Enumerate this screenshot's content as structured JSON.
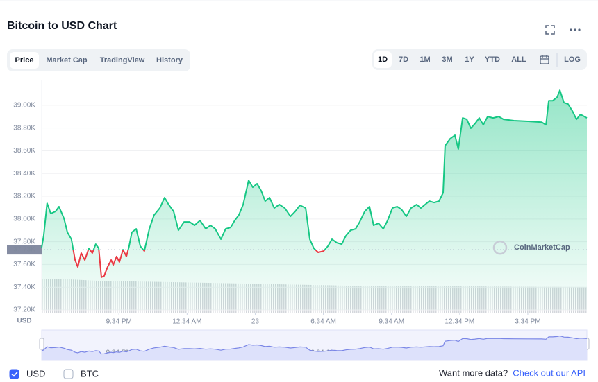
{
  "header": {
    "title": "Bitcoin to USD Chart"
  },
  "tabs": [
    "Price",
    "Market Cap",
    "TradingView",
    "History"
  ],
  "active_tab": 0,
  "ranges": [
    "1D",
    "7D",
    "1M",
    "3M",
    "1Y",
    "YTD",
    "ALL"
  ],
  "active_range": 0,
  "log_label": "LOG",
  "chart_data": {
    "type": "line",
    "fill": true,
    "color": "#16c784",
    "down_color": "#ea3943",
    "grid": true,
    "y_unit_label": "USD",
    "watermark": "CoinMarketCap",
    "reference": {
      "value": 37730,
      "label": "37.73K"
    },
    "xlim": [
      0,
      24
    ],
    "xticks": [
      {
        "value": 3.4,
        "label": "9:34 PM"
      },
      {
        "value": 6.4,
        "label": "12:34 AM"
      },
      {
        "value": 9.4,
        "label": "23"
      },
      {
        "value": 12.4,
        "label": "6:34 AM"
      },
      {
        "value": 15.4,
        "label": "9:34 AM"
      },
      {
        "value": 18.4,
        "label": "12:34 PM"
      },
      {
        "value": 21.4,
        "label": "3:34 PM"
      }
    ],
    "ylim": [
      37200,
      39225
    ],
    "yticks": [
      {
        "value": 37200,
        "label": "37.20K"
      },
      {
        "value": 37400,
        "label": "37.40K"
      },
      {
        "value": 37600,
        "label": "37.60K"
      },
      {
        "value": 37800,
        "label": "37.80K"
      },
      {
        "value": 38000,
        "label": "38.00K"
      },
      {
        "value": 38200,
        "label": "38.20K"
      },
      {
        "value": 38400,
        "label": "38.40K"
      },
      {
        "value": 38600,
        "label": "38.60K"
      },
      {
        "value": 38800,
        "label": "38.80K"
      },
      {
        "value": 39000,
        "label": "39.00K"
      }
    ],
    "x": [
      0,
      0.09,
      0.24,
      0.4,
      0.61,
      0.76,
      0.98,
      1.13,
      1.31,
      1.47,
      1.59,
      1.74,
      1.9,
      2.08,
      2.23,
      2.38,
      2.51,
      2.63,
      2.75,
      2.9,
      3.06,
      3.15,
      3.3,
      3.42,
      3.58,
      3.73,
      3.85,
      3.97,
      4.16,
      4.34,
      4.52,
      4.74,
      4.95,
      5.2,
      5.41,
      5.59,
      5.81,
      6.02,
      6.27,
      6.51,
      6.73,
      6.97,
      7.22,
      7.43,
      7.64,
      7.89,
      8.1,
      8.32,
      8.5,
      8.68,
      8.87,
      9.11,
      9.29,
      9.48,
      9.66,
      9.84,
      10.03,
      10.24,
      10.46,
      10.7,
      10.95,
      11.16,
      11.37,
      11.62,
      11.8,
      11.98,
      12.17,
      12.41,
      12.6,
      12.78,
      12.99,
      13.21,
      13.39,
      13.6,
      13.82,
      14,
      14.22,
      14.43,
      14.61,
      14.83,
      15.04,
      15.23,
      15.44,
      15.65,
      15.84,
      16.05,
      16.26,
      16.51,
      16.69,
      16.88,
      17.06,
      17.27,
      17.49,
      17.67,
      17.76,
      17.98,
      18.19,
      18.34,
      18.53,
      18.71,
      18.89,
      19.08,
      19.26,
      19.44,
      19.63,
      19.87,
      20.12,
      20.33,
      20.79,
      21.4,
      22.01,
      22.2,
      22.32,
      22.5,
      22.69,
      22.81,
      22.99,
      23.17,
      23.36,
      23.54,
      23.72,
      24
    ],
    "values": [
      37749,
      37852,
      38139,
      38048,
      38066,
      38109,
      38005,
      37883,
      37822,
      37639,
      37578,
      37700,
      37639,
      37743,
      37700,
      37779,
      37743,
      37487,
      37499,
      37578,
      37639,
      37596,
      37670,
      37621,
      37730,
      37670,
      37761,
      37883,
      37913,
      37761,
      37718,
      37913,
      38035,
      38096,
      38188,
      38127,
      38066,
      37901,
      37974,
      37974,
      37944,
      37987,
      37913,
      37944,
      37913,
      37822,
      37913,
      37926,
      37987,
      38035,
      38127,
      38340,
      38279,
      38310,
      38249,
      38157,
      38188,
      38096,
      38127,
      38096,
      38023,
      38066,
      38121,
      38096,
      37822,
      37743,
      37706,
      37718,
      37761,
      37822,
      37791,
      37779,
      37852,
      37901,
      37913,
      37974,
      38066,
      38109,
      37944,
      37962,
      37913,
      37987,
      38096,
      38109,
      38084,
      38023,
      38096,
      38127,
      38096,
      38127,
      38157,
      38145,
      38157,
      38230,
      38645,
      38706,
      38737,
      38615,
      38889,
      38877,
      38798,
      38840,
      38889,
      38828,
      38901,
      38889,
      38901,
      38877,
      38865,
      38859,
      38852,
      38828,
      39041,
      39041,
      39072,
      39133,
      39023,
      39011,
      38950,
      38877,
      38920,
      38889
    ]
  },
  "footer": {
    "currencies": [
      {
        "label": "USD",
        "checked": true
      },
      {
        "label": "BTC",
        "checked": false
      }
    ],
    "prompt": "Want more data?",
    "link": "Check out our API"
  }
}
